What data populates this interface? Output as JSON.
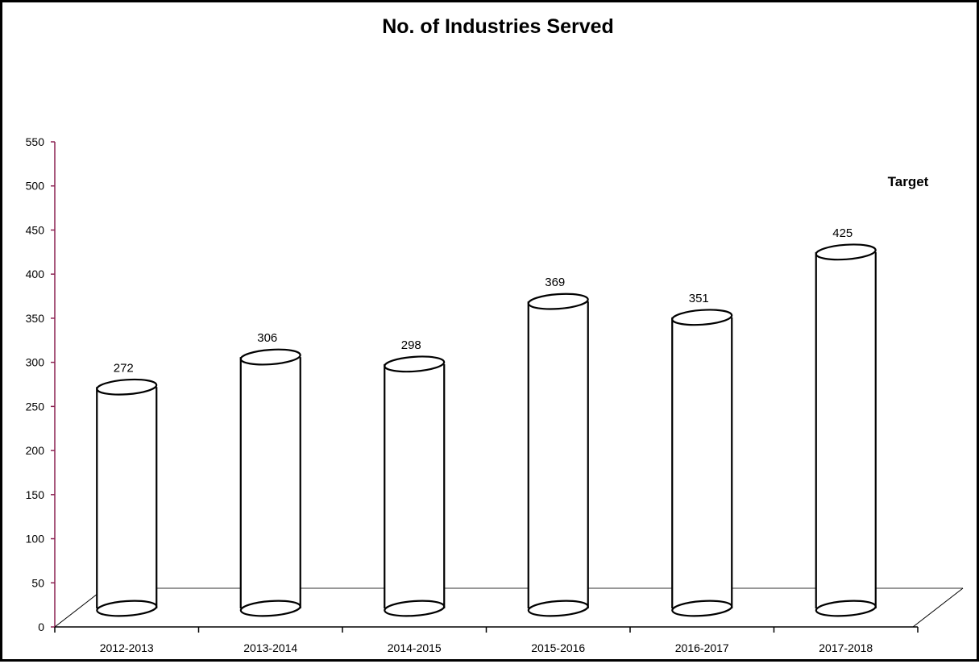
{
  "chart_data": {
    "type": "bar",
    "style": "3d-cylinder",
    "title": "No. of Industries Served",
    "xlabel": "",
    "ylabel": "",
    "categories": [
      "2012-2013",
      "2013-2014",
      "2014-2015",
      "2015-2016",
      "2016-2017",
      "2017-2018"
    ],
    "values": [
      272,
      306,
      298,
      369,
      351,
      425
    ],
    "data_labels": [
      "272",
      "306",
      "298",
      "369",
      "351",
      "425"
    ],
    "ylim": [
      0,
      550
    ],
    "yticks": [
      0,
      50,
      100,
      150,
      200,
      250,
      300,
      350,
      400,
      450,
      500,
      550
    ],
    "annotation": "Target",
    "grid": false,
    "legend": "none",
    "colors": {
      "bar_fill": "#ffffff",
      "bar_stroke": "#000000",
      "axis": "#000000",
      "y_axis": "#8b2252"
    }
  }
}
